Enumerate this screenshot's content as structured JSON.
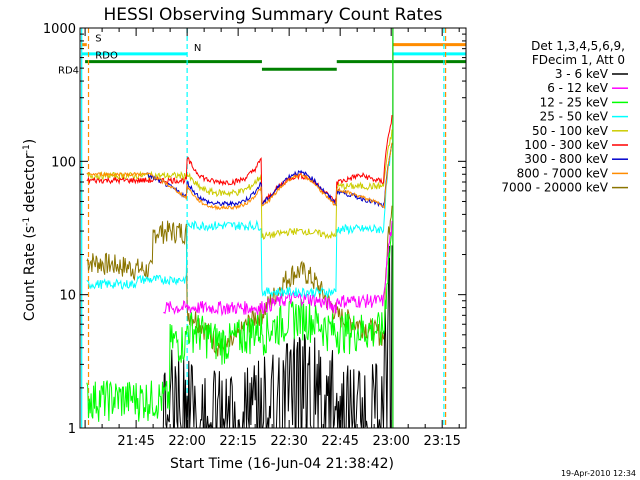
{
  "chart_data": {
    "type": "line",
    "title": "HESSI Observing Summary Count Rates",
    "xlabel": "Start Time (16-Jun-04 21:38:42)",
    "ylabel_main": "Count Rate (s",
    "ylabel_sup1": "-1",
    "ylabel_mid": " detector",
    "ylabel_sup2": "-1",
    "ylabel_end": ")",
    "y_scale": "log",
    "ylim": [
      1,
      1000
    ],
    "xlim_minutes": [
      -16.5,
      97
    ],
    "x_ticks": [
      {
        "m": 0,
        "label": "21:45"
      },
      {
        "m": 15,
        "label": "22:00"
      },
      {
        "m": 30,
        "label": "22:15"
      },
      {
        "m": 45,
        "label": "22:30"
      },
      {
        "m": 60,
        "label": "22:45"
      },
      {
        "m": 75,
        "label": "23:00"
      },
      {
        "m": 90,
        "label": "23:15"
      }
    ],
    "y_ticks": [
      {
        "v": 1,
        "label": "1"
      },
      {
        "v": 10,
        "label": "10"
      },
      {
        "v": 100,
        "label": "100"
      },
      {
        "v": 1000,
        "label": "1000"
      }
    ],
    "grid": false,
    "legend_position": "right",
    "legend_header": [
      "Det 1,3,4,5,6,9,",
      "FDecim 1, Att 0"
    ],
    "series": [
      {
        "name": "3 - 6 keV",
        "color": "#000000"
      },
      {
        "name": "6 - 12 keV",
        "color": "#ff00ff"
      },
      {
        "name": "12 - 25 keV",
        "color": "#00ff00"
      },
      {
        "name": "25 - 50 keV",
        "color": "#00ffff"
      },
      {
        "name": "50 - 100 keV",
        "color": "#cccc00"
      },
      {
        "name": "100 - 300 keV",
        "color": "#ff0000"
      },
      {
        "name": "300 - 800 keV",
        "color": "#0000cc"
      },
      {
        "name": "800 - 7000 keV",
        "color": "#ff8c00"
      },
      {
        "name": "7000 - 20000 keV",
        "color": "#8b7500"
      }
    ],
    "flags": [
      {
        "label": "S",
        "color": "#ff8c00",
        "y_value": 750,
        "segments": [
          [
            -16,
            -14.5
          ],
          [
            75.5,
            97
          ]
        ]
      },
      {
        "label": "N",
        "color": "#00ffff",
        "y_value": 640,
        "segments": [
          [
            -16,
            15
          ],
          [
            75.5,
            97
          ]
        ]
      },
      {
        "label": "RDO",
        "color": "#008000",
        "y_value": 560,
        "segments": [
          [
            -15,
            15
          ],
          [
            15,
            37
          ],
          [
            59,
            97
          ]
        ]
      },
      {
        "label": "RD4",
        "color": "#008000",
        "y_value": 490,
        "segments": [
          [
            37,
            59
          ]
        ]
      }
    ],
    "event_lines": [
      {
        "m": -16,
        "color": "#00ffff",
        "style": "solid"
      },
      {
        "m": -14,
        "color": "#ff8c00",
        "style": "dashed"
      },
      {
        "m": 15,
        "color": "#00ffff",
        "style": "dashed"
      },
      {
        "m": 75.5,
        "color": "#00cc00",
        "style": "solid"
      },
      {
        "m": 90.5,
        "color": "#00ffff",
        "style": "dashed"
      },
      {
        "m": 91,
        "color": "#ff8c00",
        "style": "dashed"
      }
    ]
  },
  "footer_timestamp": "19-Apr-2010 12:34"
}
